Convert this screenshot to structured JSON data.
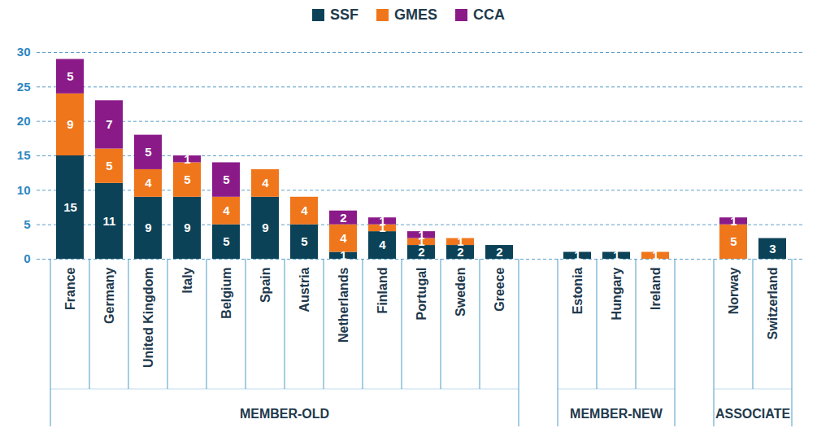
{
  "chart_data": {
    "type": "bar",
    "stacked": true,
    "data_labels": true,
    "grid": true,
    "legend": "top",
    "categories": [
      "France",
      "Germany",
      "United Kingdom",
      "Italy",
      "Belgium",
      "Spain",
      "Austria",
      "Netherlands",
      "Finland",
      "Portugal",
      "Sweden",
      "Greece",
      null,
      "Estonia",
      "Hungary",
      "Ireland",
      null,
      "Norway",
      "Switzerland"
    ],
    "category_groups": [
      "MEMBER-OLD",
      "MEMBER-OLD",
      "MEMBER-OLD",
      "MEMBER-OLD",
      "MEMBER-OLD",
      "MEMBER-OLD",
      "MEMBER-OLD",
      "MEMBER-OLD",
      "MEMBER-OLD",
      "MEMBER-OLD",
      "MEMBER-OLD",
      "MEMBER-OLD",
      null,
      "MEMBER-NEW",
      "MEMBER-NEW",
      "MEMBER-NEW",
      null,
      "ASSOCIATE",
      "ASSOCIATE"
    ],
    "series": [
      {
        "name": "SSF",
        "color": "#0b4257",
        "values": [
          15,
          11,
          9,
          9,
          5,
          9,
          5,
          1,
          4,
          2,
          2,
          2,
          null,
          1,
          1,
          0,
          null,
          0,
          3
        ]
      },
      {
        "name": "GMES",
        "color": "#f0761c",
        "values": [
          9,
          5,
          4,
          5,
          4,
          4,
          4,
          4,
          1,
          1,
          1,
          0,
          null,
          0,
          0,
          1,
          null,
          5,
          0
        ]
      },
      {
        "name": "CCA",
        "color": "#8b1a89",
        "values": [
          5,
          7,
          5,
          1,
          5,
          0,
          0,
          2,
          1,
          1,
          0,
          0,
          null,
          0,
          0,
          0,
          null,
          1,
          0
        ]
      }
    ],
    "ylim": [
      0,
      30
    ],
    "yticks": [
      0,
      5,
      10,
      15,
      20,
      25,
      30
    ]
  }
}
